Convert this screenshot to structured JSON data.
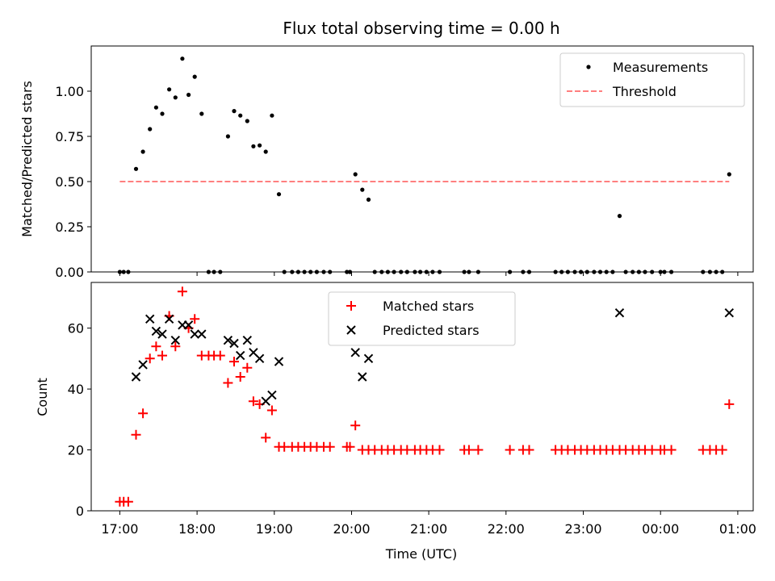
{
  "title": "Flux total observing time = 0.00 h",
  "chart_data": [
    {
      "type": "scatter",
      "ylabel": "Matched/Predicted stars",
      "ylim": [
        0,
        1.25
      ],
      "yticks": [
        0,
        0.25,
        0.5,
        0.75,
        1.0
      ],
      "ytick_labels": [
        "0.00",
        "0.25",
        "0.50",
        "0.75",
        "1.00"
      ],
      "grid": false,
      "legend_position": "top-right",
      "series": [
        {
          "name": "Measurements",
          "marker": "dot",
          "color": "#000000",
          "points": [
            [
              0.0,
              0
            ],
            [
              0.05,
              0
            ],
            [
              0.11,
              0
            ],
            [
              0.21,
              0.57
            ],
            [
              0.3,
              0.665
            ],
            [
              0.39,
              0.79
            ],
            [
              0.47,
              0.91
            ],
            [
              0.55,
              0.875
            ],
            [
              0.64,
              1.01
            ],
            [
              0.72,
              0.965
            ],
            [
              0.81,
              1.18
            ],
            [
              0.89,
              0.98
            ],
            [
              0.97,
              1.08
            ],
            [
              1.06,
              0.875
            ],
            [
              1.15,
              0
            ],
            [
              1.22,
              0
            ],
            [
              1.3,
              0
            ],
            [
              1.4,
              0.75
            ],
            [
              1.48,
              0.89
            ],
            [
              1.56,
              0.865
            ],
            [
              1.65,
              0.835
            ],
            [
              1.73,
              0.695
            ],
            [
              1.81,
              0.7
            ],
            [
              1.89,
              0.665
            ],
            [
              1.97,
              0.865
            ],
            [
              2.06,
              0.43
            ],
            [
              2.13,
              0
            ],
            [
              2.23,
              0
            ],
            [
              2.31,
              0
            ],
            [
              2.39,
              0
            ],
            [
              2.47,
              0
            ],
            [
              2.55,
              0
            ],
            [
              2.64,
              0
            ],
            [
              2.72,
              0
            ],
            [
              2.94,
              0
            ],
            [
              2.98,
              0
            ],
            [
              3.05,
              0.54
            ],
            [
              3.14,
              0.455
            ],
            [
              3.22,
              0.4
            ],
            [
              3.3,
              0
            ],
            [
              3.39,
              0
            ],
            [
              3.47,
              0
            ],
            [
              3.55,
              0
            ],
            [
              3.64,
              0
            ],
            [
              3.72,
              0
            ],
            [
              3.82,
              0
            ],
            [
              3.89,
              0
            ],
            [
              3.97,
              0
            ],
            [
              4.05,
              0
            ],
            [
              4.14,
              0
            ],
            [
              4.46,
              0
            ],
            [
              4.52,
              0
            ],
            [
              4.64,
              0
            ],
            [
              5.05,
              0
            ],
            [
              5.22,
              0
            ],
            [
              5.3,
              0
            ],
            [
              5.64,
              0
            ],
            [
              5.72,
              0
            ],
            [
              5.8,
              0
            ],
            [
              5.89,
              0
            ],
            [
              5.97,
              0
            ],
            [
              6.05,
              0
            ],
            [
              6.14,
              0
            ],
            [
              6.22,
              0
            ],
            [
              6.3,
              0
            ],
            [
              6.38,
              0
            ],
            [
              6.47,
              0.31
            ],
            [
              6.55,
              0
            ],
            [
              6.64,
              0
            ],
            [
              6.72,
              0
            ],
            [
              6.8,
              0
            ],
            [
              6.89,
              0
            ],
            [
              7.0,
              0
            ],
            [
              7.05,
              0
            ],
            [
              7.14,
              0
            ],
            [
              7.55,
              0
            ],
            [
              7.64,
              0
            ],
            [
              7.72,
              0
            ],
            [
              7.8,
              0
            ],
            [
              7.89,
              0.54
            ]
          ]
        },
        {
          "name": "Threshold",
          "style": "dashed",
          "color": "#ff7f7f",
          "points": [
            [
              0.0,
              0.5
            ],
            [
              7.89,
              0.5
            ]
          ]
        }
      ]
    },
    {
      "type": "scatter",
      "ylabel": "Count",
      "xlabel": "Time (UTC)",
      "ylim": [
        0,
        75
      ],
      "yticks": [
        0,
        20,
        40,
        60
      ],
      "ytick_labels": [
        "0",
        "20",
        "40",
        "60"
      ],
      "xlim": [
        -0.37,
        8.2
      ],
      "xticks": [
        0,
        1,
        2,
        3,
        4,
        5,
        6,
        7,
        8
      ],
      "xtick_labels": [
        "17:00",
        "18:00",
        "19:00",
        "20:00",
        "21:00",
        "22:00",
        "23:00",
        "00:00",
        "01:00"
      ],
      "x_units": "hours after 17:00 UTC",
      "grid": false,
      "legend_position": "top-center",
      "series": [
        {
          "name": "Matched stars",
          "marker": "plus",
          "color": "#ff0000",
          "points": [
            [
              0.0,
              3
            ],
            [
              0.05,
              3
            ],
            [
              0.11,
              3
            ],
            [
              0.21,
              25
            ],
            [
              0.3,
              32
            ],
            [
              0.39,
              50
            ],
            [
              0.47,
              54
            ],
            [
              0.55,
              51
            ],
            [
              0.64,
              64
            ],
            [
              0.72,
              54
            ],
            [
              0.81,
              72
            ],
            [
              0.89,
              60
            ],
            [
              0.97,
              63
            ],
            [
              1.06,
              51
            ],
            [
              1.15,
              51
            ],
            [
              1.22,
              51
            ],
            [
              1.3,
              51
            ],
            [
              1.4,
              42
            ],
            [
              1.48,
              49
            ],
            [
              1.56,
              44
            ],
            [
              1.65,
              47
            ],
            [
              1.73,
              36
            ],
            [
              1.81,
              35
            ],
            [
              1.89,
              24
            ],
            [
              1.97,
              33
            ],
            [
              2.06,
              21
            ],
            [
              2.13,
              21
            ],
            [
              2.23,
              21
            ],
            [
              2.31,
              21
            ],
            [
              2.39,
              21
            ],
            [
              2.47,
              21
            ],
            [
              2.55,
              21
            ],
            [
              2.64,
              21
            ],
            [
              2.72,
              21
            ],
            [
              2.94,
              21
            ],
            [
              2.98,
              21
            ],
            [
              3.05,
              28
            ],
            [
              3.14,
              20
            ],
            [
              3.22,
              20
            ],
            [
              3.3,
              20
            ],
            [
              3.39,
              20
            ],
            [
              3.47,
              20
            ],
            [
              3.55,
              20
            ],
            [
              3.64,
              20
            ],
            [
              3.72,
              20
            ],
            [
              3.82,
              20
            ],
            [
              3.89,
              20
            ],
            [
              3.97,
              20
            ],
            [
              4.05,
              20
            ],
            [
              4.14,
              20
            ],
            [
              4.46,
              20
            ],
            [
              4.52,
              20
            ],
            [
              4.64,
              20
            ],
            [
              5.05,
              20
            ],
            [
              5.22,
              20
            ],
            [
              5.3,
              20
            ],
            [
              5.64,
              20
            ],
            [
              5.72,
              20
            ],
            [
              5.8,
              20
            ],
            [
              5.89,
              20
            ],
            [
              5.97,
              20
            ],
            [
              6.05,
              20
            ],
            [
              6.14,
              20
            ],
            [
              6.22,
              20
            ],
            [
              6.3,
              20
            ],
            [
              6.38,
              20
            ],
            [
              6.47,
              20
            ],
            [
              6.55,
              20
            ],
            [
              6.64,
              20
            ],
            [
              6.72,
              20
            ],
            [
              6.8,
              20
            ],
            [
              6.89,
              20
            ],
            [
              7.0,
              20
            ],
            [
              7.05,
              20
            ],
            [
              7.14,
              20
            ],
            [
              7.55,
              20
            ],
            [
              7.64,
              20
            ],
            [
              7.72,
              20
            ],
            [
              7.8,
              20
            ],
            [
              7.89,
              35
            ]
          ]
        },
        {
          "name": "Predicted stars",
          "marker": "x",
          "color": "#000000",
          "points": [
            [
              0.21,
              44
            ],
            [
              0.3,
              48
            ],
            [
              0.39,
              63
            ],
            [
              0.47,
              59
            ],
            [
              0.55,
              58
            ],
            [
              0.64,
              63
            ],
            [
              0.72,
              56
            ],
            [
              0.81,
              61
            ],
            [
              0.89,
              61
            ],
            [
              0.97,
              58
            ],
            [
              1.06,
              58
            ],
            [
              1.4,
              56
            ],
            [
              1.48,
              55
            ],
            [
              1.56,
              51
            ],
            [
              1.65,
              56
            ],
            [
              1.73,
              52
            ],
            [
              1.81,
              50
            ],
            [
              1.89,
              36
            ],
            [
              1.97,
              38
            ],
            [
              2.06,
              49
            ],
            [
              3.05,
              52
            ],
            [
              3.14,
              44
            ],
            [
              3.22,
              50
            ],
            [
              6.47,
              65
            ],
            [
              7.89,
              65
            ]
          ]
        }
      ]
    }
  ]
}
